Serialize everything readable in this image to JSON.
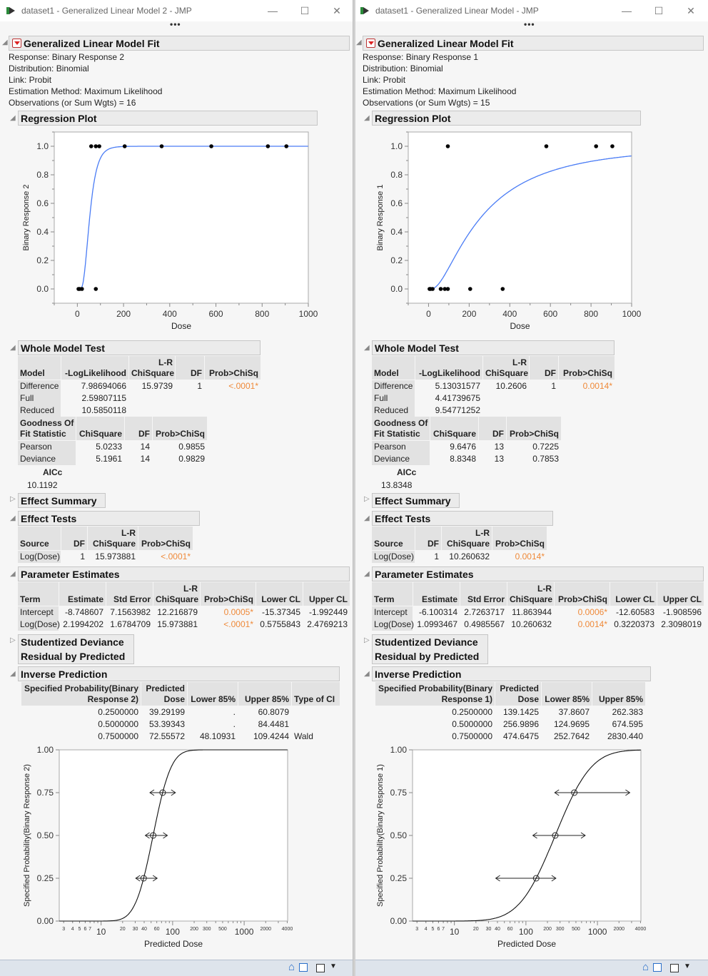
{
  "app": {
    "more_label": "•••",
    "minimize": "—",
    "maximize": "☐",
    "close": "✕"
  },
  "colors": {
    "fit_line": "#4a7cf5",
    "significant": "#ef8a3a",
    "header_bg": "#e2e2e2",
    "statusbar": "#dee4ec"
  },
  "windows": [
    {
      "title": "dataset1 - Generalized Linear Model 2 - JMP",
      "report": {
        "title": "Generalized Linear Model Fit",
        "info": [
          "Response: Binary Response 2",
          "Distribution: Binomial",
          "Link: Probit",
          "Estimation Method: Maximum Likelihood",
          "Observations (or Sum Wgts) = 16"
        ],
        "regression_plot": {
          "title": "Regression Plot"
        },
        "whole_model": {
          "title": "Whole Model Test",
          "headers": [
            [
              "",
              "Model"
            ],
            [
              "",
              "-LogLikelihood"
            ],
            [
              "L-R",
              "ChiSquare"
            ],
            [
              "",
              "DF"
            ],
            [
              "",
              "Prob>ChiSq"
            ]
          ],
          "rows": [
            [
              "Difference",
              "7.98694066",
              "15.9739",
              "1",
              "<.0001*"
            ],
            [
              "Full",
              "2.59807115",
              "",
              "",
              ""
            ],
            [
              "Reduced",
              "10.5850118",
              "",
              "",
              ""
            ]
          ],
          "gof_headers": [
            [
              "Goodness Of",
              "Fit Statistic"
            ],
            [
              "",
              "ChiSquare"
            ],
            [
              "",
              "DF"
            ],
            [
              "",
              "Prob>ChiSq"
            ]
          ],
          "gof_rows": [
            [
              "Pearson",
              "5.0233",
              "14",
              "0.9855"
            ],
            [
              "Deviance",
              "5.1961",
              "14",
              "0.9829"
            ]
          ],
          "aicc_label": "AICc",
          "aicc": "10.1192"
        },
        "effect_summary": {
          "title": "Effect Summary"
        },
        "effect_tests": {
          "title": "Effect Tests",
          "headers": [
            [
              "",
              "Source"
            ],
            [
              "",
              "DF"
            ],
            [
              "L-R",
              "ChiSquare"
            ],
            [
              "",
              "Prob>ChiSq"
            ]
          ],
          "rows": [
            [
              "Log(Dose)",
              "1",
              "15.973881",
              "<.0001*"
            ]
          ]
        },
        "parameter_estimates": {
          "title": "Parameter Estimates",
          "headers": [
            [
              "",
              "Term"
            ],
            [
              "",
              "Estimate"
            ],
            [
              "",
              "Std Error"
            ],
            [
              "L-R",
              "ChiSquare"
            ],
            [
              "",
              "Prob>ChiSq"
            ],
            [
              "",
              "Lower CL"
            ],
            [
              "",
              "Upper CL"
            ]
          ],
          "rows": [
            [
              "Intercept",
              "-8.748607",
              "7.1563982",
              "12.216879",
              "0.0005*",
              "-15.37345",
              "-1.992449"
            ],
            [
              "Log(Dose)",
              "2.1994202",
              "1.6784709",
              "15.973881",
              "<.0001*",
              "0.5755843",
              "2.4769213"
            ]
          ]
        },
        "studentized": {
          "title_lines": [
            "Studentized Deviance",
            "Residual by Predicted"
          ]
        },
        "inverse_prediction": {
          "title": "Inverse Prediction",
          "headers": [
            [
              "Specified Probability(Binary",
              "Response 2)"
            ],
            [
              "Predicted",
              "Dose"
            ],
            [
              "",
              "Lower 85%"
            ],
            [
              "",
              "Upper 85%"
            ],
            [
              "",
              "Type of CI"
            ]
          ],
          "rows": [
            [
              "0.2500000",
              "39.29199",
              ".",
              "60.8079",
              ""
            ],
            [
              "0.5000000",
              "53.39343",
              ".",
              "84.4481",
              ""
            ],
            [
              "0.7500000",
              "72.55572",
              "48.10931",
              "109.4244",
              "Wald"
            ]
          ]
        }
      }
    },
    {
      "title": "dataset1 - Generalized Linear Model - JMP",
      "report": {
        "title": "Generalized Linear Model Fit",
        "info": [
          "Response: Binary Response 1",
          "Distribution: Binomial",
          "Link: Probit",
          "Estimation Method: Maximum Likelihood",
          "Observations (or Sum Wgts) = 15"
        ],
        "regression_plot": {
          "title": "Regression Plot"
        },
        "whole_model": {
          "title": "Whole Model Test",
          "headers": [
            [
              "",
              "Model"
            ],
            [
              "",
              "-LogLikelihood"
            ],
            [
              "L-R",
              "ChiSquare"
            ],
            [
              "",
              "DF"
            ],
            [
              "",
              "Prob>ChiSq"
            ]
          ],
          "rows": [
            [
              "Difference",
              "5.13031577",
              "10.2606",
              "1",
              "0.0014*"
            ],
            [
              "Full",
              "4.41739675",
              "",
              "",
              ""
            ],
            [
              "Reduced",
              "9.54771252",
              "",
              "",
              ""
            ]
          ],
          "gof_headers": [
            [
              "Goodness Of",
              "Fit Statistic"
            ],
            [
              "",
              "ChiSquare"
            ],
            [
              "",
              "DF"
            ],
            [
              "",
              "Prob>ChiSq"
            ]
          ],
          "gof_rows": [
            [
              "Pearson",
              "9.6476",
              "13",
              "0.7225"
            ],
            [
              "Deviance",
              "8.8348",
              "13",
              "0.7853"
            ]
          ],
          "aicc_label": "AICc",
          "aicc": "13.8348"
        },
        "effect_summary": {
          "title": "Effect Summary"
        },
        "effect_tests": {
          "title": "Effect Tests",
          "headers": [
            [
              "",
              "Source"
            ],
            [
              "",
              "DF"
            ],
            [
              "L-R",
              "ChiSquare"
            ],
            [
              "",
              "Prob>ChiSq"
            ]
          ],
          "rows": [
            [
              "Log(Dose)",
              "1",
              "10.260632",
              "0.0014*"
            ]
          ]
        },
        "parameter_estimates": {
          "title": "Parameter Estimates",
          "headers": [
            [
              "",
              "Term"
            ],
            [
              "",
              "Estimate"
            ],
            [
              "",
              "Std Error"
            ],
            [
              "L-R",
              "ChiSquare"
            ],
            [
              "",
              "Prob>ChiSq"
            ],
            [
              "",
              "Lower CL"
            ],
            [
              "",
              "Upper CL"
            ]
          ],
          "rows": [
            [
              "Intercept",
              "-6.100314",
              "2.7263717",
              "11.863944",
              "0.0006*",
              "-12.60583",
              "-1.908596"
            ],
            [
              "Log(Dose)",
              "1.0993467",
              "0.4985567",
              "10.260632",
              "0.0014*",
              "0.3220373",
              "2.3098019"
            ]
          ]
        },
        "studentized": {
          "title_lines": [
            "Studentized Deviance",
            "Residual by Predicted"
          ]
        },
        "inverse_prediction": {
          "title": "Inverse Prediction",
          "headers": [
            [
              "Specified Probability(Binary",
              "Response 1)"
            ],
            [
              "Predicted",
              "Dose"
            ],
            [
              "",
              "Lower 85%"
            ],
            [
              "",
              "Upper 85%"
            ]
          ],
          "rows": [
            [
              "0.2500000",
              "139.1425",
              "37.8607",
              "262.383"
            ],
            [
              "0.5000000",
              "256.9896",
              "124.9695",
              "674.595"
            ],
            [
              "0.7500000",
              "474.6475",
              "252.7642",
              "2830.440"
            ]
          ]
        }
      }
    }
  ],
  "chart_data": [
    {
      "type": "scatter",
      "title": "",
      "xlabel": "Dose",
      "ylabel": "Binary Response 2",
      "xlim": [
        -100,
        1000
      ],
      "ylim": [
        -0.1,
        1.1
      ],
      "x_ticks": [
        "0",
        "200",
        "400",
        "600",
        "800",
        "1000"
      ],
      "y_ticks": [
        "0.0",
        "0.2",
        "0.4",
        "0.6",
        "0.8",
        "1.0"
      ],
      "points": {
        "x": [
          5,
          10,
          20,
          80,
          60,
          80,
          95,
          205,
          365,
          580,
          825,
          905
        ],
        "y": [
          0,
          0,
          0,
          0,
          1,
          1,
          1,
          1,
          1,
          1,
          1,
          1
        ]
      },
      "fit": {
        "link": "probit",
        "intercept": -8.748607,
        "slope_log_dose": 2.1994202
      }
    },
    {
      "type": "line",
      "title": "",
      "xlabel": "Predicted Dose",
      "ylabel": "Specified Probability(Binary Response 2)",
      "x_scale": "log",
      "xlim": [
        2.6,
        4050
      ],
      "ylim": [
        0,
        1
      ],
      "y_ticks": [
        "0.00",
        "0.25",
        "0.50",
        "0.75",
        "1.00"
      ],
      "x_tick_labels_major": [
        "10",
        "100",
        "1000"
      ],
      "x_tick_labels_minor": [
        "3",
        "4",
        "5",
        "6",
        "7",
        "20",
        "30",
        "40",
        "60",
        "200",
        "300",
        "500",
        "2000",
        "4000"
      ],
      "markers": [
        {
          "p": 0.25,
          "dose": 39.29199,
          "lower": null,
          "upper": 60.8079
        },
        {
          "p": 0.5,
          "dose": 53.39343,
          "lower": null,
          "upper": 84.4481
        },
        {
          "p": 0.75,
          "dose": 72.55572,
          "lower": 48.10931,
          "upper": 109.4244
        }
      ],
      "fit": {
        "link": "probit",
        "intercept": -8.748607,
        "slope_log_dose": 2.1994202
      }
    },
    {
      "type": "scatter",
      "title": "",
      "xlabel": "Dose",
      "ylabel": "Binary Response 1",
      "xlim": [
        -100,
        1000
      ],
      "ylim": [
        -0.1,
        1.1
      ],
      "x_ticks": [
        "0",
        "200",
        "400",
        "600",
        "800",
        "1000"
      ],
      "y_ticks": [
        "0.0",
        "0.2",
        "0.4",
        "0.6",
        "0.8",
        "1.0"
      ],
      "points": {
        "x": [
          5,
          10,
          20,
          60,
          80,
          95,
          205,
          365,
          95,
          580,
          825,
          905
        ],
        "y": [
          0,
          0,
          0,
          0,
          0,
          0,
          0,
          0,
          1,
          1,
          1,
          1
        ]
      },
      "fit": {
        "link": "probit",
        "intercept": -6.100314,
        "slope_log_dose": 1.0993467
      }
    },
    {
      "type": "line",
      "title": "",
      "xlabel": "Predicted Dose",
      "ylabel": "Specified Probability(Binary Response 1)",
      "x_scale": "log",
      "xlim": [
        2.6,
        4050
      ],
      "ylim": [
        0,
        1
      ],
      "y_ticks": [
        "0.00",
        "0.25",
        "0.50",
        "0.75",
        "1.00"
      ],
      "x_tick_labels_major": [
        "10",
        "100",
        "1000"
      ],
      "x_tick_labels_minor": [
        "3",
        "4",
        "5",
        "6",
        "7",
        "20",
        "30",
        "40",
        "60",
        "200",
        "300",
        "500",
        "2000",
        "4000"
      ],
      "markers": [
        {
          "p": 0.25,
          "dose": 139.1425,
          "lower": 37.8607,
          "upper": 262.383
        },
        {
          "p": 0.5,
          "dose": 256.9896,
          "lower": 124.9695,
          "upper": 674.595
        },
        {
          "p": 0.75,
          "dose": 474.6475,
          "lower": 252.7642,
          "upper": 2830.44
        }
      ],
      "fit": {
        "link": "probit",
        "intercept": -6.100314,
        "slope_log_dose": 1.0993467
      }
    }
  ]
}
